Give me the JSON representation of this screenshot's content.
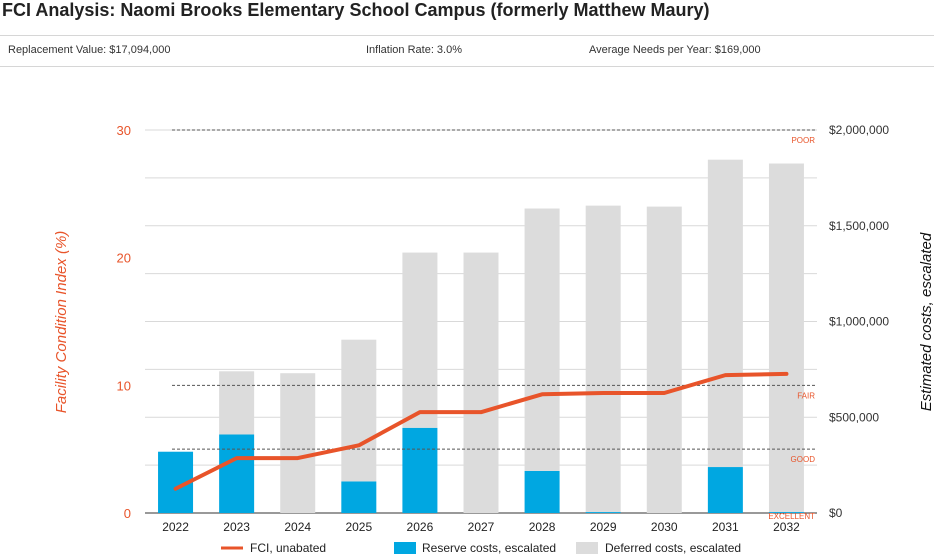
{
  "header": {
    "title": "FCI Analysis: Naomi Brooks Elementary School Campus (formerly Matthew Maury)",
    "replacement_value": "Replacement Value: $17,094,000",
    "inflation_rate": "Inflation Rate: 3.0%",
    "average_needs": "Average Needs per Year: $169,000"
  },
  "colors": {
    "fci_line": "#e8542a",
    "reserve": "#00a7e1",
    "deferred": "#dcdcdc",
    "left_axis": "#e8542a",
    "threshold_label": "#e8542a",
    "grid": "#d9d9d9"
  },
  "chart_data": {
    "type": "bar",
    "categories": [
      "2022",
      "2023",
      "2024",
      "2025",
      "2026",
      "2027",
      "2028",
      "2029",
      "2030",
      "2031",
      "2032"
    ],
    "left_axis": {
      "label": "Facility Condition Index (%)",
      "ticks": [
        0,
        10,
        20,
        30
      ],
      "range": [
        0,
        30
      ]
    },
    "right_axis": {
      "label": "Estimated costs, escalated",
      "ticks": [
        "$0",
        "$500,000",
        "$1,000,000",
        "$1,500,000",
        "$2,000,000"
      ],
      "tick_values": [
        0,
        500000,
        1000000,
        1500000,
        2000000
      ],
      "range": [
        0,
        2000000
      ]
    },
    "series": [
      {
        "name": "FCI, unabated",
        "kind": "line",
        "axis": "left",
        "values": [
          1.9,
          4.3,
          4.3,
          5.3,
          7.9,
          7.9,
          9.3,
          9.4,
          9.4,
          10.8,
          10.9
        ]
      },
      {
        "name": "Reserve costs, escalated",
        "kind": "bar",
        "axis": "right",
        "values": [
          320000,
          410000,
          0,
          165000,
          445000,
          0,
          220000,
          5000,
          0,
          240000,
          5000
        ]
      },
      {
        "name": "Deferred costs, escalated",
        "kind": "bar",
        "axis": "right",
        "values": [
          0,
          330000,
          730000,
          740000,
          915000,
          1360000,
          1370000,
          1600000,
          1600000,
          1605000,
          1820000
        ]
      }
    ],
    "thresholds": [
      {
        "label": "POOR",
        "value": 30
      },
      {
        "label": "FAIR",
        "value": 10
      },
      {
        "label": "GOOD",
        "value": 5
      },
      {
        "label": "EXCELLENT",
        "value": 0
      }
    ],
    "legend_position": "bottom"
  }
}
